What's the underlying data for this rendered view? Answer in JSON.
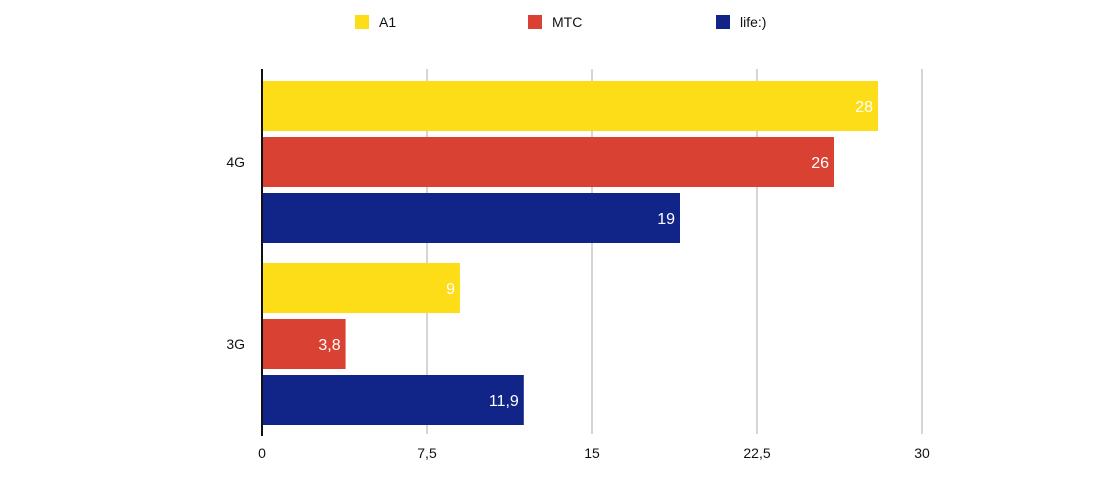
{
  "chart_data": {
    "type": "bar",
    "orientation": "horizontal",
    "categories": [
      "4G",
      "3G"
    ],
    "series": [
      {
        "name": "A1",
        "color": "#FCDD17",
        "values": [
          28,
          9
        ],
        "labels": [
          "28",
          "9"
        ]
      },
      {
        "name": "MTC",
        "color": "#D94232",
        "values": [
          26,
          3.8
        ],
        "labels": [
          "26",
          "3,8"
        ]
      },
      {
        "name": "life:)",
        "color": "#112588",
        "values": [
          19,
          11.9
        ],
        "labels": [
          "19",
          "11,9"
        ]
      }
    ],
    "xlim": [
      0,
      30
    ],
    "xticks": [
      0,
      7.5,
      15,
      22.5,
      30
    ],
    "xtick_labels": [
      "0",
      "7,5",
      "15",
      "22,5",
      "30"
    ],
    "grid": true,
    "legend_position": "top-center"
  }
}
